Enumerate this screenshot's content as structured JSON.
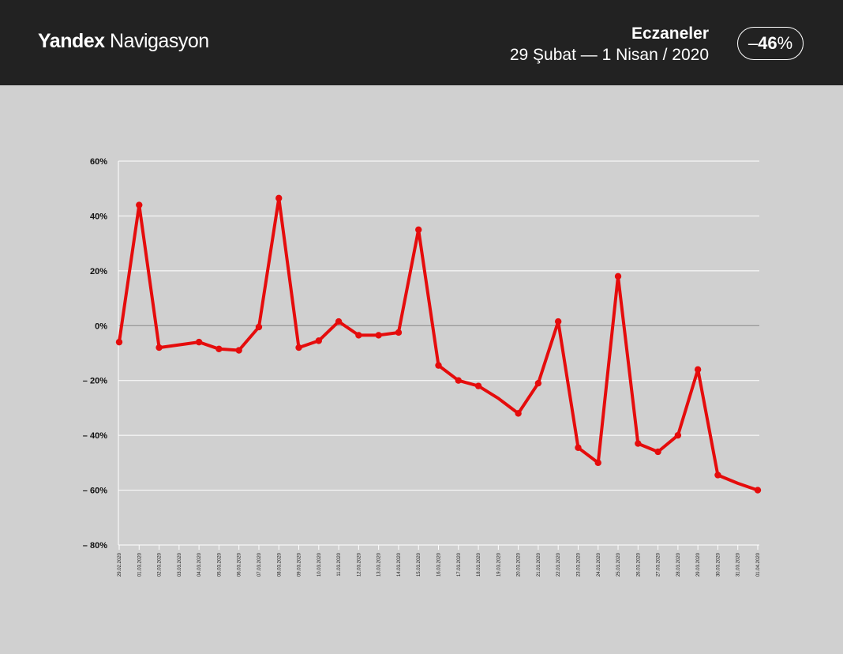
{
  "header": {
    "brand_bold": "Yandex",
    "brand_light": "Navigasyon",
    "title": "Eczaneler",
    "subtitle": "29 Şubat  —  1 Nisan / 2020",
    "badge_prefix": "–",
    "badge_value": "46",
    "badge_suffix": "%"
  },
  "colors": {
    "header_bg": "#222222",
    "plot_bg": "#d0d0d0",
    "line": "#e50c0c",
    "gridline": "#ffffff",
    "zero_line": "#888888"
  },
  "chart_data": {
    "type": "line",
    "title": "",
    "xlabel": "",
    "ylabel": "",
    "ylim": [
      -80,
      60
    ],
    "y_ticks": [
      60,
      40,
      20,
      0,
      -20,
      -40,
      -60,
      -80
    ],
    "y_tick_labels": [
      "60%",
      "40%",
      "20%",
      "0%",
      "– 20%",
      "– 40%",
      "– 60%",
      "– 80%"
    ],
    "grid": true,
    "categories": [
      "29.02.2020",
      "01.03.2020",
      "02.03.2020",
      "03.03.2020",
      "04.03.2020",
      "05.03.2020",
      "06.03.2020",
      "07.03.2020",
      "08.03.2020",
      "09.03.2020",
      "10.03.2020",
      "11.03.2020",
      "12.03.2020",
      "13.03.2020",
      "14.03.2020",
      "15.03.2020",
      "16.03.2020",
      "17.03.2020",
      "18.03.2020",
      "19.03.2020",
      "20.03.2020",
      "21.03.2020",
      "22.03.2020",
      "23.03.2020",
      "24.03.2020",
      "25.03.2020",
      "26.03.2020",
      "27.03.2020",
      "28.03.2020",
      "29.03.2020",
      "30.03.2020",
      "31.03.2020",
      "01.04.2020"
    ],
    "series": [
      {
        "values": [
          -6,
          44,
          -8,
          -7,
          -6,
          -8.5,
          -9,
          -0.5,
          46.5,
          -8,
          -5.5,
          1.5,
          -3.5,
          -3.5,
          -2.5,
          35,
          -14.5,
          -20,
          -22,
          -26.5,
          -32,
          -21,
          1.5,
          -44.5,
          -50,
          18,
          -43,
          -46,
          -40,
          -16,
          -54.5,
          -57.5,
          -60
        ],
        "markers": [
          true,
          true,
          true,
          false,
          true,
          true,
          true,
          true,
          true,
          true,
          true,
          true,
          true,
          true,
          true,
          true,
          true,
          true,
          true,
          false,
          true,
          true,
          true,
          true,
          true,
          true,
          true,
          true,
          true,
          true,
          true,
          false,
          true
        ]
      }
    ]
  }
}
